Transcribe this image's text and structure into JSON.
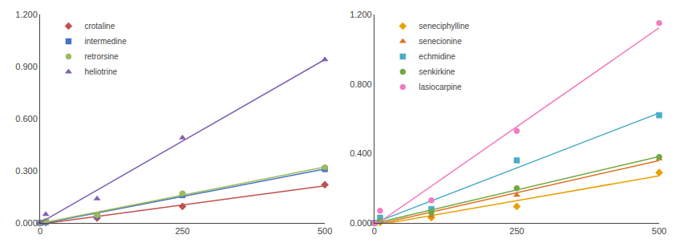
{
  "chart_data": [
    {
      "type": "scatter",
      "legend": "upper left",
      "grid": false,
      "xlim": [
        0,
        500
      ],
      "xticks": [
        0,
        250,
        500
      ],
      "ylim": [
        0,
        1.2
      ],
      "yticks": [
        {
          "value": 0,
          "label": "0.000"
        },
        {
          "value": 0.3,
          "label": "0.300"
        },
        {
          "value": 0.6,
          "label": "0.600"
        },
        {
          "value": 0.9,
          "label": "0.900"
        },
        {
          "value": 1.2,
          "label": "1.200"
        }
      ],
      "series": [
        {
          "name": "crotaline",
          "color": "#c0504d",
          "marker": "diamond",
          "x": [
            0,
            10,
            100,
            250,
            500
          ],
          "values": [
            0.0,
            0.003,
            0.028,
            0.095,
            0.22
          ],
          "fit_x": [
            0,
            500
          ],
          "fit_values": [
            -0.00669,
            0.21391
          ]
        },
        {
          "name": "intermedine",
          "color": "#4472c4",
          "marker": "square",
          "x": [
            0,
            10,
            100,
            250,
            500
          ],
          "values": [
            0.0,
            0.005,
            0.04,
            0.16,
            0.31
          ],
          "fit_x": [
            0,
            500
          ],
          "fit_values": [
            -0.00578,
            0.31043
          ]
        },
        {
          "name": "retrorsine",
          "color": "#9bbb59",
          "marker": "circle",
          "x": [
            0,
            10,
            100,
            250,
            500
          ],
          "values": [
            0.0,
            0.01,
            0.045,
            0.17,
            0.32
          ],
          "fit_x": [
            0,
            500
          ],
          "fit_values": [
            -0.00262,
            0.32186
          ]
        },
        {
          "name": "heliotrine",
          "color": "#7f5faf",
          "marker": "triangle-up",
          "x": [
            0,
            10,
            100,
            250,
            500
          ],
          "values": [
            0.0,
            0.05,
            0.14,
            0.49,
            0.94
          ],
          "fit_x": [
            0,
            500
          ],
          "fit_values": [
            0.00068,
            0.94057
          ]
        }
      ]
    },
    {
      "type": "scatter",
      "legend": "upper left",
      "grid": false,
      "xlim": [
        0,
        500
      ],
      "xticks": [
        0,
        250,
        500
      ],
      "ylim": [
        0,
        1.2
      ],
      "yticks": [
        {
          "value": 0,
          "label": "0.000"
        },
        {
          "value": 0.4,
          "label": "0.400"
        },
        {
          "value": 0.8,
          "label": "0.800"
        },
        {
          "value": 1.2,
          "label": "1.200"
        }
      ],
      "series": [
        {
          "name": "seneciphylline",
          "color": "#e8a000",
          "marker": "diamond",
          "x": [
            0,
            10,
            100,
            250,
            500
          ],
          "values": [
            0.0,
            0.003,
            0.03,
            0.095,
            0.29
          ],
          "fit_x": [
            0,
            500
          ],
          "fit_values": [
            -0.01475,
            0.27115
          ]
        },
        {
          "name": "senecionine",
          "color": "#e07020",
          "marker": "triangle-up",
          "x": [
            0,
            10,
            100,
            250,
            500
          ],
          "values": [
            0.0,
            0.01,
            0.04,
            0.16,
            0.37
          ],
          "fit_x": [
            0,
            500
          ],
          "fit_values": [
            -0.01136,
            0.35886
          ]
        },
        {
          "name": "echmidine",
          "color": "#4bacc6",
          "marker": "square",
          "x": [
            0,
            10,
            100,
            250,
            500
          ],
          "values": [
            0.0,
            0.03,
            0.08,
            0.36,
            0.62
          ],
          "fit_x": [
            0,
            500
          ],
          "fit_values": [
            0.00057,
            0.63264
          ]
        },
        {
          "name": "senkirkine",
          "color": "#70a840",
          "marker": "circle",
          "x": [
            0,
            10,
            100,
            250,
            500
          ],
          "values": [
            0.0,
            0.01,
            0.06,
            0.2,
            0.38
          ],
          "fit_x": [
            0,
            500
          ],
          "fit_values": [
            -0.00224,
            0.38218
          ]
        },
        {
          "name": "lasiocarpine",
          "color": "#f07cc0",
          "marker": "circle",
          "x": [
            0,
            10,
            100,
            250,
            500
          ],
          "values": [
            0.0,
            0.07,
            0.13,
            0.53,
            1.15
          ],
          "fit_x": [
            0,
            500
          ],
          "fit_values": [
            -0.01574,
            1.12303
          ]
        }
      ]
    }
  ]
}
